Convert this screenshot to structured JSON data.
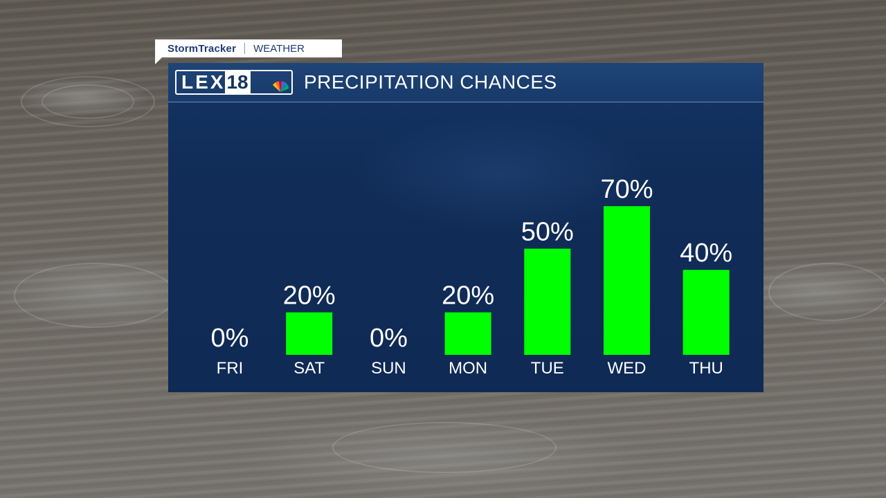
{
  "brand": {
    "name": "StormTracker",
    "section": "WEATHER"
  },
  "station": {
    "logo_letters": "LEX",
    "logo_number": "18"
  },
  "panel": {
    "title": "PRECIPITATION CHANCES"
  },
  "colors": {
    "bar": "#00ff00",
    "panel": "#102c57",
    "text": "#ffffff"
  },
  "chart_data": {
    "type": "bar",
    "title": "PRECIPITATION CHANCES",
    "categories": [
      "FRI",
      "SAT",
      "SUN",
      "MON",
      "TUE",
      "WED",
      "THU"
    ],
    "values": [
      0,
      20,
      0,
      20,
      50,
      70,
      40
    ],
    "value_labels": [
      "0%",
      "20%",
      "0%",
      "20%",
      "50%",
      "70%",
      "40%"
    ],
    "unit": "%",
    "ylim": [
      0,
      100
    ],
    "grid": false,
    "legend": "none"
  }
}
